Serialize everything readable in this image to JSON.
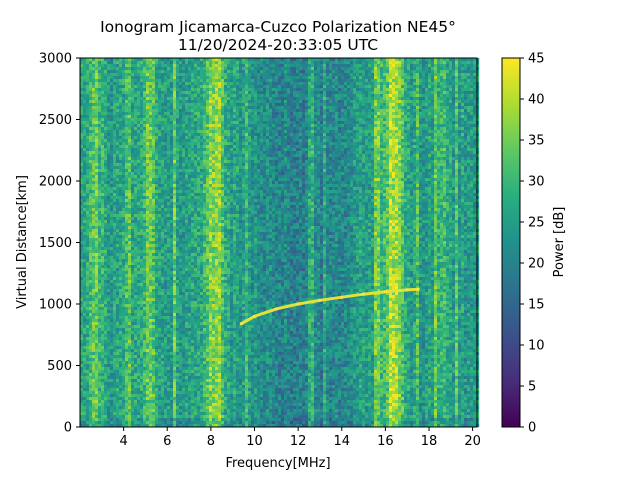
{
  "chart_data": {
    "type": "heatmap",
    "title_line1": "Ionogram Jicamarca-Cuzco Polarization NE45°",
    "title_line2": "11/20/2024-20:33:05 UTC",
    "xlabel": "Frequency[MHz]",
    "ylabel": "Virtual Distance[km]",
    "colorbar_label": "Power [dB]",
    "colormap": "viridis",
    "xlim": [
      2.0,
      20.2
    ],
    "ylim": [
      0,
      3000
    ],
    "clim": [
      0,
      45
    ],
    "xticks": [
      4,
      6,
      8,
      10,
      12,
      14,
      16,
      18,
      20
    ],
    "yticks": [
      0,
      500,
      1000,
      1500,
      2000,
      2500,
      3000
    ],
    "cticks": [
      0,
      5,
      10,
      15,
      20,
      25,
      30,
      35,
      40,
      45
    ],
    "bright_bands_mhz": [
      {
        "center": 2.7,
        "width": 0.8,
        "level": 33
      },
      {
        "center": 5.2,
        "width": 0.6,
        "level": 34
      },
      {
        "center": 8.2,
        "width": 0.9,
        "level": 38
      },
      {
        "center": 16.4,
        "width": 0.9,
        "level": 41
      },
      {
        "center": 18.6,
        "width": 0.5,
        "level": 31
      }
    ],
    "vertical_lines_mhz": [
      4.2,
      6.3,
      9.6,
      12.6,
      13.2,
      15.6,
      17.5,
      18.3,
      19.3
    ],
    "echo_trace": [
      {
        "x": 9.4,
        "y": 840
      },
      {
        "x": 10.0,
        "y": 900
      },
      {
        "x": 11.0,
        "y": 960
      },
      {
        "x": 12.0,
        "y": 1000
      },
      {
        "x": 13.0,
        "y": 1030
      },
      {
        "x": 14.0,
        "y": 1055
      },
      {
        "x": 15.0,
        "y": 1080
      },
      {
        "x": 16.0,
        "y": 1100
      },
      {
        "x": 17.0,
        "y": 1115
      },
      {
        "x": 17.5,
        "y": 1120
      }
    ],
    "background_level": 25
  }
}
